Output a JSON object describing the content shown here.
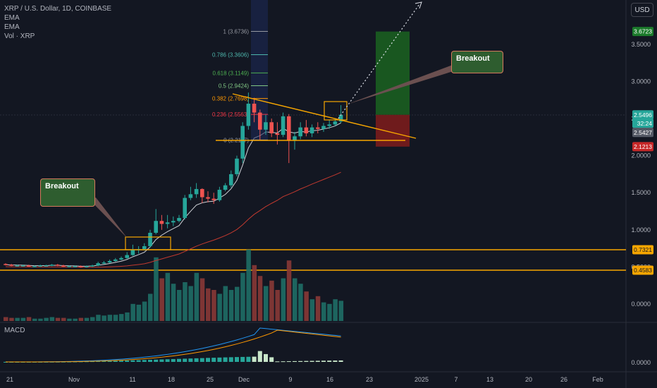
{
  "header": {
    "symbol_line": "XRP / U.S. Dollar, 1D, COINBASE",
    "indicators": [
      "EMA",
      "EMA",
      "Vol · XRP"
    ],
    "currency_button": "USD"
  },
  "macd_label": "MACD",
  "price_axis": {
    "ticks": [
      "3.5000",
      "3.0000",
      "2.5000",
      "2.0000",
      "1.5000",
      "1.0000",
      "0.5000",
      "0.0000"
    ],
    "macd_tick": "0.0000"
  },
  "price_tags": {
    "target": "3.6723",
    "last": "2.5496",
    "countdown": "32:24",
    "ema": "2.5427",
    "stop": "2.1213",
    "level_high": "0.7321",
    "level_low": "0.4583"
  },
  "time_axis": [
    "21",
    "Nov",
    "11",
    "18",
    "25",
    "Dec",
    "9",
    "16",
    "23",
    "2025",
    "7",
    "13",
    "20",
    "26",
    "Feb"
  ],
  "fib_levels": [
    {
      "label": "1 (3.6736)",
      "color": "#9598a1"
    },
    {
      "label": "0.786 (3.3606)",
      "color": "#4db6ac"
    },
    {
      "label": "0.618 (3.1149)",
      "color": "#4caf50"
    },
    {
      "label": "0.5 (2.9424)",
      "color": "#81c784"
    },
    {
      "label": "0.382 (2.7698)",
      "color": "#ff9800"
    },
    {
      "label": "0.236 (2.5563)",
      "color": "#f23645"
    },
    {
      "label": "0 (2.2117)",
      "color": "#9598a1"
    }
  ],
  "callouts": [
    {
      "text": "Breakout"
    },
    {
      "text": "Breakout"
    }
  ],
  "colors": {
    "background": "#131722",
    "up": "#26a69a",
    "down": "#ef5350",
    "levels": "#f7a600",
    "ema_fast": "#cfd2d8",
    "ema_slow": "#c2392f",
    "macd": "#2196f3",
    "signal": "#ff9800"
  },
  "chart_data": {
    "type": "candlestick",
    "symbol": "XRP / U.S. Dollar",
    "interval": "1D",
    "exchange": "COINBASE",
    "dates": [
      "Oct 21",
      "Oct 22",
      "Oct 23",
      "Oct 24",
      "Oct 25",
      "Oct 26",
      "Oct 27",
      "Oct 28",
      "Oct 29",
      "Oct 30",
      "Oct 31",
      "Nov 1",
      "Nov 2",
      "Nov 3",
      "Nov 4",
      "Nov 5",
      "Nov 6",
      "Nov 7",
      "Nov 8",
      "Nov 9",
      "Nov 10",
      "Nov 11",
      "Nov 12",
      "Nov 13",
      "Nov 14",
      "Nov 15",
      "Nov 16",
      "Nov 17",
      "Nov 18",
      "Nov 19",
      "Nov 20",
      "Nov 21",
      "Nov 22",
      "Nov 23",
      "Nov 24",
      "Nov 25",
      "Nov 26",
      "Nov 27",
      "Nov 28",
      "Nov 29",
      "Nov 30",
      "Dec 1",
      "Dec 2",
      "Dec 3",
      "Dec 4",
      "Dec 5",
      "Dec 6",
      "Dec 7",
      "Dec 8",
      "Dec 9",
      "Dec 10",
      "Dec 11",
      "Dec 12",
      "Dec 13",
      "Dec 14",
      "Dec 15",
      "Dec 16",
      "Dec 17",
      "Dec 18"
    ],
    "open": [
      0.54,
      0.53,
      0.52,
      0.52,
      0.52,
      0.51,
      0.51,
      0.52,
      0.52,
      0.53,
      0.52,
      0.51,
      0.51,
      0.51,
      0.5,
      0.51,
      0.52,
      0.55,
      0.56,
      0.58,
      0.6,
      0.62,
      0.66,
      0.73,
      0.74,
      0.78,
      0.96,
      1.12,
      1.08,
      1.1,
      1.12,
      1.16,
      1.43,
      1.48,
      1.55,
      1.44,
      1.42,
      1.4,
      1.54,
      1.6,
      1.75,
      1.96,
      2.4,
      2.7,
      2.58,
      2.35,
      2.45,
      2.3,
      2.28,
      2.53,
      2.2,
      2.26,
      2.38,
      2.3,
      2.38,
      2.36,
      2.4,
      2.42,
      2.46
    ],
    "close": [
      0.53,
      0.52,
      0.52,
      0.52,
      0.51,
      0.51,
      0.52,
      0.52,
      0.53,
      0.52,
      0.51,
      0.51,
      0.51,
      0.5,
      0.51,
      0.52,
      0.55,
      0.56,
      0.58,
      0.6,
      0.62,
      0.66,
      0.73,
      0.74,
      0.78,
      0.96,
      1.12,
      1.08,
      1.1,
      1.12,
      1.16,
      1.43,
      1.48,
      1.55,
      1.44,
      1.42,
      1.4,
      1.54,
      1.6,
      1.75,
      1.96,
      2.4,
      2.7,
      2.58,
      2.35,
      2.45,
      2.3,
      2.28,
      2.53,
      2.2,
      2.26,
      2.38,
      2.3,
      2.38,
      2.36,
      2.4,
      2.42,
      2.46,
      2.55
    ],
    "high": [
      0.55,
      0.54,
      0.53,
      0.53,
      0.53,
      0.52,
      0.53,
      0.53,
      0.54,
      0.54,
      0.53,
      0.52,
      0.52,
      0.52,
      0.52,
      0.53,
      0.57,
      0.58,
      0.6,
      0.62,
      0.64,
      0.7,
      0.8,
      0.78,
      0.82,
      1.0,
      1.28,
      1.2,
      1.2,
      1.18,
      1.2,
      1.47,
      1.58,
      1.63,
      1.56,
      1.52,
      1.5,
      1.58,
      1.63,
      1.8,
      2.0,
      2.45,
      2.85,
      2.78,
      2.62,
      2.55,
      2.5,
      2.45,
      2.58,
      2.56,
      2.32,
      2.45,
      2.48,
      2.42,
      2.45,
      2.44,
      2.48,
      2.5,
      2.68
    ],
    "low": [
      0.52,
      0.51,
      0.51,
      0.51,
      0.5,
      0.5,
      0.5,
      0.51,
      0.51,
      0.51,
      0.5,
      0.5,
      0.5,
      0.49,
      0.49,
      0.5,
      0.51,
      0.54,
      0.55,
      0.57,
      0.59,
      0.61,
      0.65,
      0.68,
      0.72,
      0.76,
      0.94,
      1.0,
      1.02,
      1.05,
      1.1,
      1.14,
      1.4,
      1.43,
      1.36,
      1.37,
      1.35,
      1.38,
      1.52,
      1.57,
      1.72,
      1.9,
      2.35,
      2.45,
      2.2,
      2.28,
      2.25,
      2.15,
      2.25,
      1.9,
      2.08,
      2.22,
      2.26,
      2.25,
      2.3,
      2.32,
      2.36,
      2.4,
      2.44
    ],
    "ylim": [
      0,
      3.8
    ],
    "horizontal_levels": [
      0.7321,
      0.4583
    ],
    "long_position": {
      "target": 3.6723,
      "entry": 2.5496,
      "stop": 2.1213
    },
    "fib_retracement": {
      "1": 3.6736,
      "0.786": 3.3606,
      "0.618": 3.1149,
      "0.5": 2.9424,
      "0.382": 2.7698,
      "0.236": 2.5563,
      "0": 2.2117
    }
  }
}
